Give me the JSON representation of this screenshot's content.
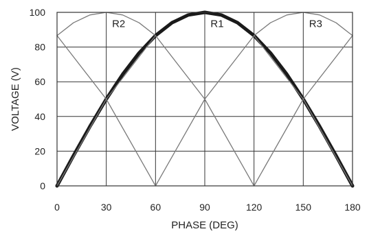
{
  "chart_data": {
    "type": "line",
    "title": "",
    "xlabel": "PHASE (DEG)",
    "ylabel": "VOLTAGE (V)",
    "xlim": [
      0,
      180
    ],
    "ylim": [
      0,
      100
    ],
    "xticks": [
      0,
      30,
      60,
      90,
      120,
      150,
      180
    ],
    "yticks": [
      0,
      20,
      40,
      60,
      80,
      100
    ],
    "grid": true,
    "series": [
      {
        "name": "R1",
        "emphasis": "bold",
        "color": "#1a1a1a",
        "x": [
          0,
          10,
          20,
          30,
          40,
          50,
          60,
          70,
          80,
          90,
          100,
          110,
          120,
          130,
          140,
          150,
          160,
          170,
          180
        ],
        "y": [
          0,
          17.4,
          34.2,
          50,
          64.3,
          76.6,
          86.6,
          94,
          98.5,
          100,
          98.5,
          94,
          86.6,
          76.6,
          64.3,
          50,
          34.2,
          17.4,
          0
        ]
      },
      {
        "name": "R2",
        "emphasis": "thin",
        "color": "#7a7a7a",
        "x": [
          0,
          10,
          20,
          30,
          40,
          50,
          60,
          70,
          80,
          90,
          100,
          110,
          120,
          130,
          140,
          150,
          160,
          170,
          180
        ],
        "y": [
          86.6,
          94,
          98.5,
          100,
          98.5,
          94,
          86.6,
          0,
          0,
          0,
          0,
          0,
          0,
          0,
          0,
          0,
          0,
          0,
          0
        ]
      },
      {
        "name": "R3",
        "emphasis": "thin",
        "color": "#7a7a7a",
        "x": [
          0,
          10,
          20,
          30,
          40,
          50,
          60,
          70,
          80,
          90,
          100,
          110,
          120,
          130,
          140,
          150,
          160,
          170,
          180
        ],
        "y": [
          0,
          0,
          0,
          0,
          0,
          0,
          0,
          0,
          0,
          0,
          0,
          0,
          86.6,
          94,
          98.5,
          100,
          98.5,
          94,
          86.6
        ]
      },
      {
        "name": "",
        "emphasis": "thin",
        "color": "#7a7a7a",
        "x": [
          0,
          30,
          60,
          90,
          120,
          150,
          180
        ],
        "y": [
          86.6,
          50,
          0,
          50,
          86.6,
          50,
          0
        ]
      },
      {
        "name": "",
        "emphasis": "thin",
        "color": "#7a7a7a",
        "x": [
          0,
          30,
          60,
          90,
          120,
          150,
          180
        ],
        "y": [
          0,
          50,
          86.6,
          50,
          0,
          50,
          86.6
        ]
      }
    ],
    "labels": [
      {
        "text": "R2",
        "x": 30,
        "y": 93
      },
      {
        "text": "R1",
        "x": 90,
        "y": 93
      },
      {
        "text": "R3",
        "x": 150,
        "y": 93
      }
    ]
  }
}
